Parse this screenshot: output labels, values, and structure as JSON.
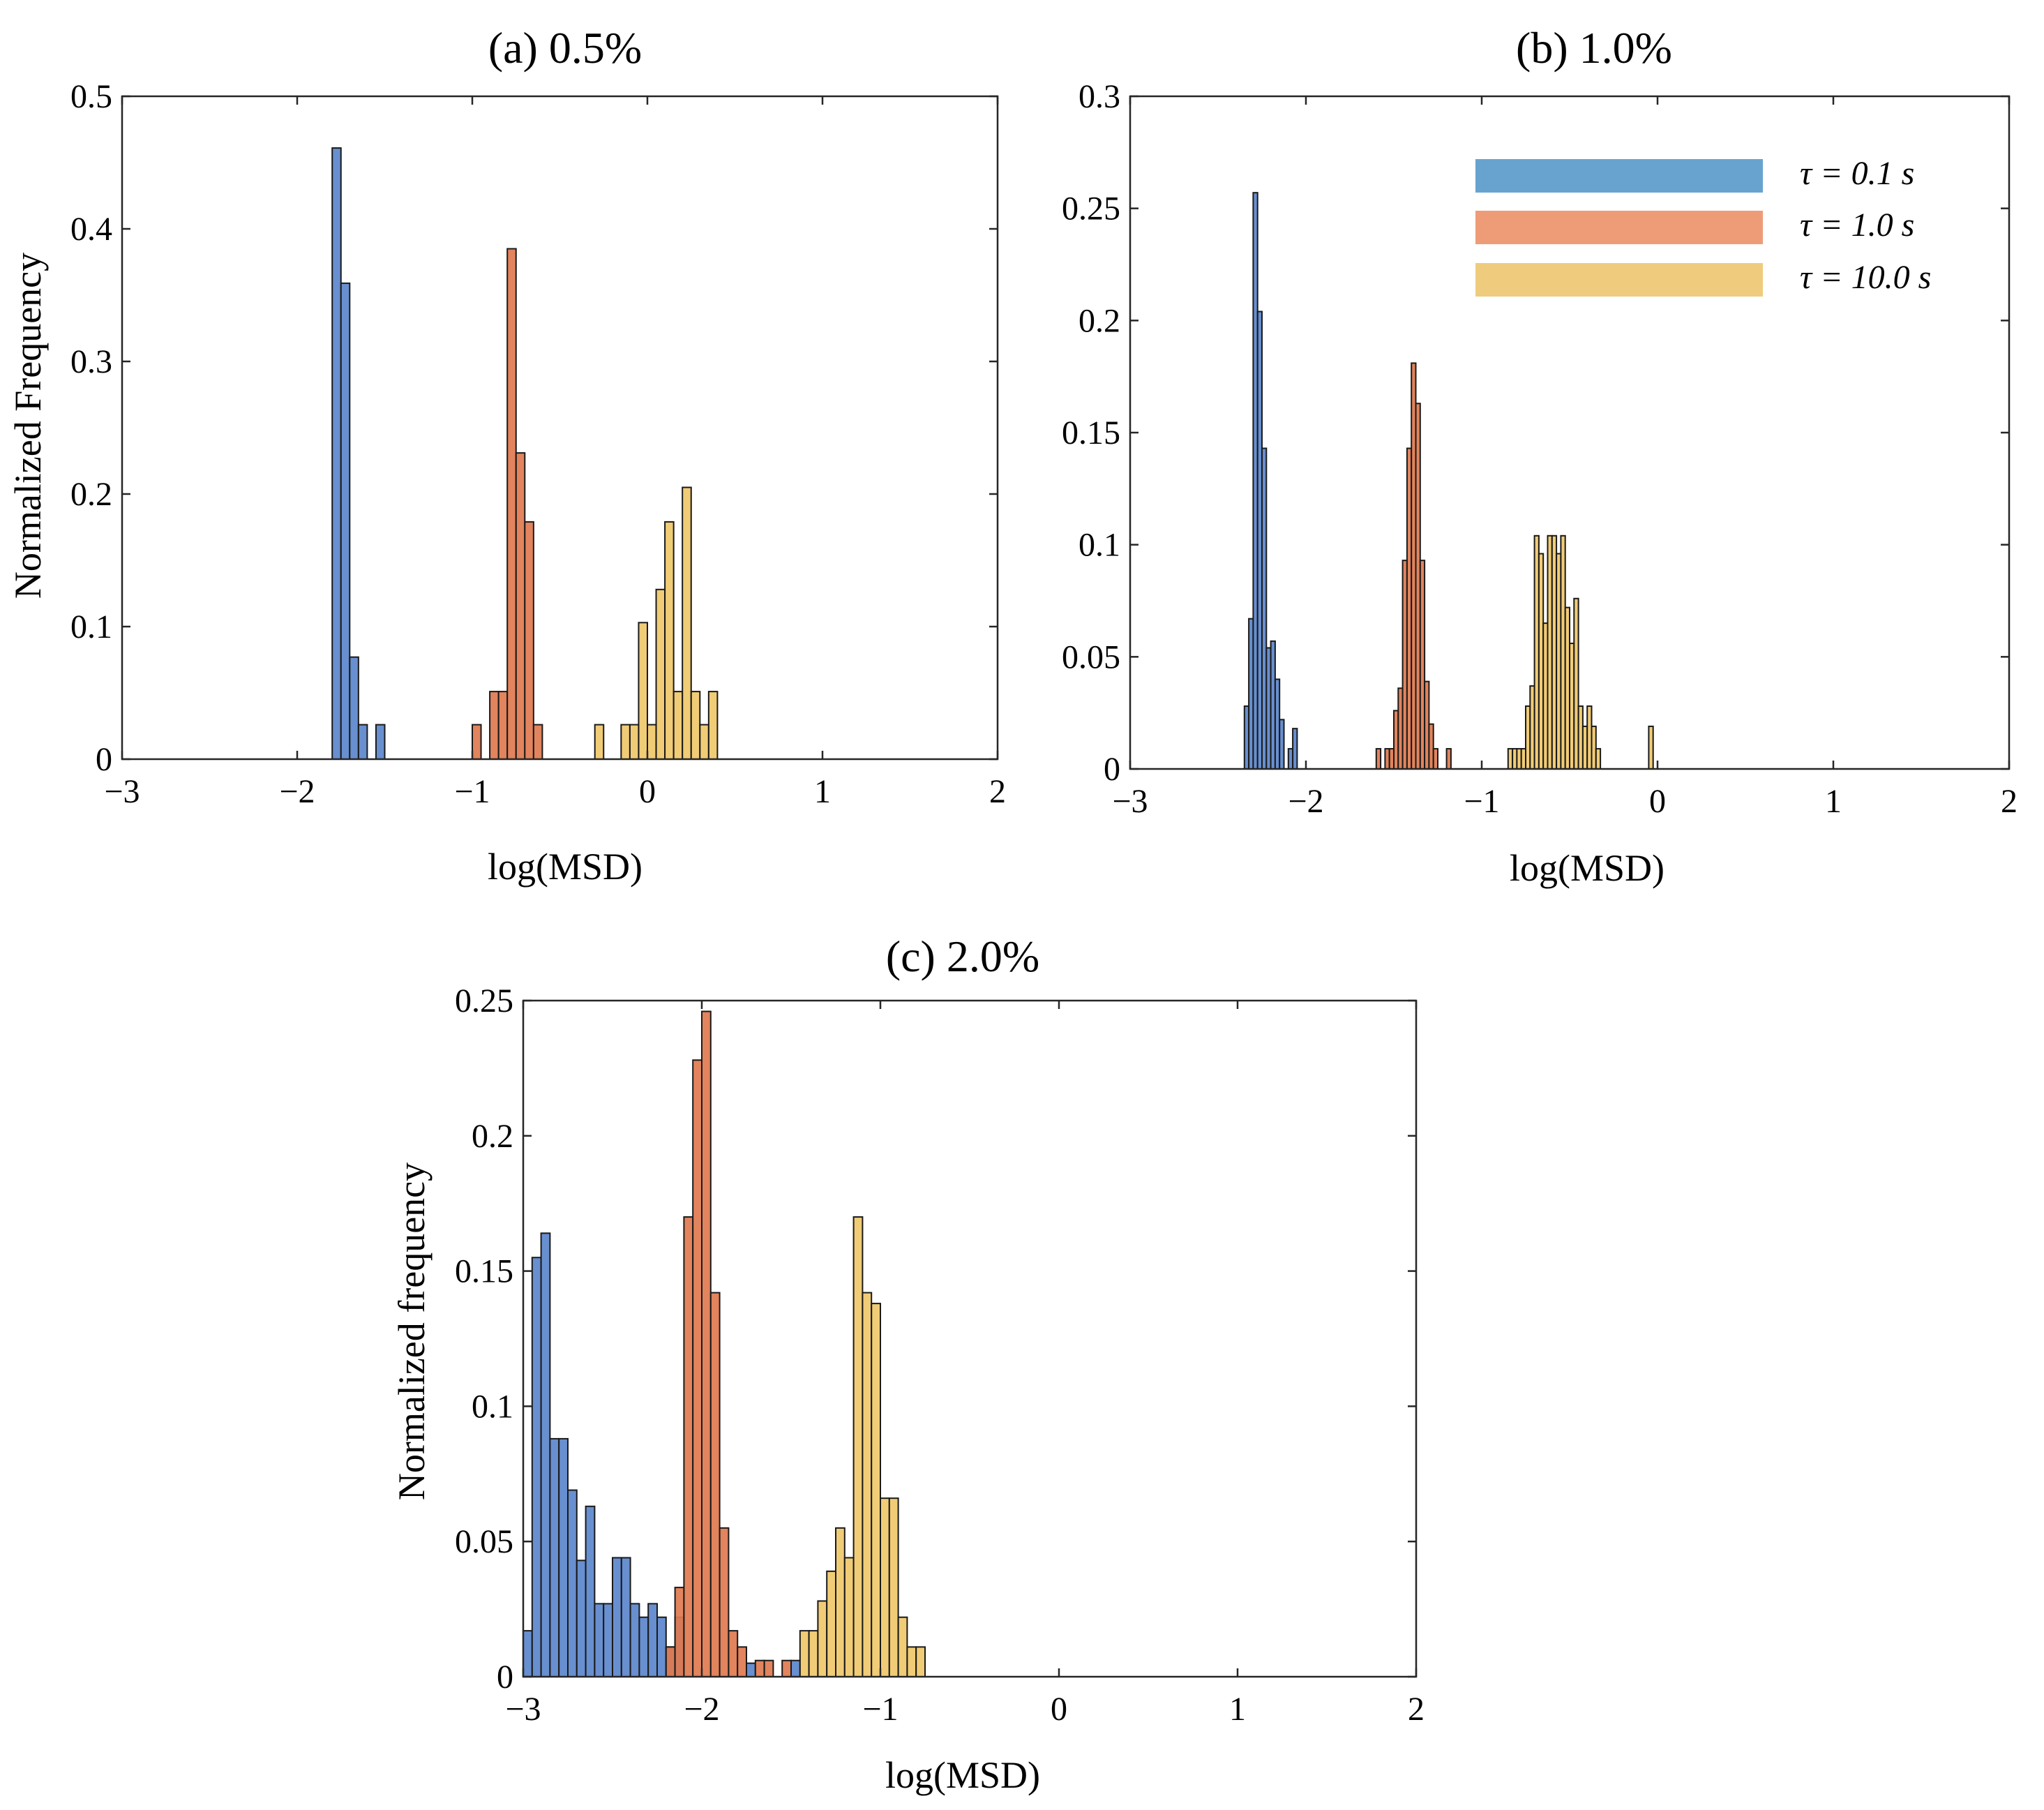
{
  "colors": {
    "tau_0_1": "#5B85CB",
    "tau_1_0": "#E07A4F",
    "tau_10_0": "#F0C86A",
    "legend_tau_0_1": "#68A3CF",
    "legend_tau_1_0": "#EE9C78",
    "legend_tau_10_0": "#EFCC7D"
  },
  "legend": {
    "items": [
      {
        "label": "τ = 0.1 s",
        "color_key": "legend_tau_0_1"
      },
      {
        "label": "τ = 1.0 s",
        "color_key": "legend_tau_1_0"
      },
      {
        "label": "τ = 10.0 s",
        "color_key": "legend_tau_10_0"
      }
    ]
  },
  "chart_data": [
    {
      "type": "bar",
      "title": "(a)  0.5%",
      "xlabel": "log(MSD)",
      "ylabel": "Normalized Frequency",
      "xlim": [
        -3,
        2
      ],
      "ylim": [
        0,
        0.5
      ],
      "xticks": [
        -3,
        -2,
        -1,
        0,
        1,
        2
      ],
      "xtick_labels": [
        "−3",
        "−2",
        "−1",
        "0",
        "1",
        "2"
      ],
      "yticks": [
        0,
        0.1,
        0.2,
        0.3,
        0.4,
        0.5
      ],
      "ytick_labels": [
        "0",
        "0.1",
        "0.2",
        "0.3",
        "0.4",
        "0.5"
      ],
      "bin_width": 0.05,
      "legend": false,
      "series": [
        {
          "name": "τ = 0.1 s",
          "color_key": "tau_0_1",
          "bins": [
            {
              "x": -1.8,
              "y": 0.461
            },
            {
              "x": -1.75,
              "y": 0.359
            },
            {
              "x": -1.7,
              "y": 0.077
            },
            {
              "x": -1.65,
              "y": 0.026
            },
            {
              "x": -1.55,
              "y": 0.026
            }
          ]
        },
        {
          "name": "τ = 1.0 s",
          "color_key": "tau_1_0",
          "bins": [
            {
              "x": -1.0,
              "y": 0.026
            },
            {
              "x": -0.9,
              "y": 0.051
            },
            {
              "x": -0.85,
              "y": 0.051
            },
            {
              "x": -0.8,
              "y": 0.385
            },
            {
              "x": -0.75,
              "y": 0.231
            },
            {
              "x": -0.7,
              "y": 0.179
            },
            {
              "x": -0.65,
              "y": 0.026
            }
          ]
        },
        {
          "name": "τ = 10.0 s",
          "color_key": "tau_10_0",
          "bins": [
            {
              "x": -0.3,
              "y": 0.026
            },
            {
              "x": -0.15,
              "y": 0.026
            },
            {
              "x": -0.1,
              "y": 0.026
            },
            {
              "x": -0.05,
              "y": 0.103
            },
            {
              "x": 0.0,
              "y": 0.026
            },
            {
              "x": 0.05,
              "y": 0.128
            },
            {
              "x": 0.1,
              "y": 0.179
            },
            {
              "x": 0.15,
              "y": 0.051
            },
            {
              "x": 0.2,
              "y": 0.205
            },
            {
              "x": 0.25,
              "y": 0.051
            },
            {
              "x": 0.3,
              "y": 0.026
            },
            {
              "x": 0.35,
              "y": 0.051
            }
          ]
        }
      ]
    },
    {
      "type": "bar",
      "title": "(b)   1.0%",
      "xlabel": "log(MSD)",
      "ylabel": "",
      "xlim": [
        -3,
        2
      ],
      "ylim": [
        0,
        0.3
      ],
      "xticks": [
        -3,
        -2,
        -1,
        0,
        1,
        2
      ],
      "xtick_labels": [
        "−3",
        "−2",
        "−1",
        "0",
        "1",
        "2"
      ],
      "yticks": [
        0,
        0.05,
        0.1,
        0.15,
        0.2,
        0.25,
        0.3
      ],
      "ytick_labels": [
        "0",
        "0.05",
        "0.1",
        "0.15",
        "0.2",
        "0.25",
        "0.3"
      ],
      "bin_width": 0.025,
      "legend": true,
      "legend_position": "top-right",
      "series": [
        {
          "name": "τ = 0.1 s",
          "color_key": "tau_0_1",
          "bins": [
            {
              "x": -2.35,
              "y": 0.028
            },
            {
              "x": -2.325,
              "y": 0.067
            },
            {
              "x": -2.3,
              "y": 0.257
            },
            {
              "x": -2.275,
              "y": 0.204
            },
            {
              "x": -2.25,
              "y": 0.143
            },
            {
              "x": -2.225,
              "y": 0.054
            },
            {
              "x": -2.2,
              "y": 0.057
            },
            {
              "x": -2.175,
              "y": 0.04
            },
            {
              "x": -2.15,
              "y": 0.022
            },
            {
              "x": -2.1,
              "y": 0.009
            },
            {
              "x": -2.075,
              "y": 0.018
            }
          ]
        },
        {
          "name": "τ = 1.0 s",
          "color_key": "tau_1_0",
          "bins": [
            {
              "x": -1.6,
              "y": 0.009
            },
            {
              "x": -1.55,
              "y": 0.009
            },
            {
              "x": -1.525,
              "y": 0.009
            },
            {
              "x": -1.5,
              "y": 0.026
            },
            {
              "x": -1.475,
              "y": 0.036
            },
            {
              "x": -1.45,
              "y": 0.093
            },
            {
              "x": -1.425,
              "y": 0.143
            },
            {
              "x": -1.4,
              "y": 0.181
            },
            {
              "x": -1.375,
              "y": 0.163
            },
            {
              "x": -1.35,
              "y": 0.093
            },
            {
              "x": -1.325,
              "y": 0.039
            },
            {
              "x": -1.3,
              "y": 0.02
            },
            {
              "x": -1.275,
              "y": 0.009
            },
            {
              "x": -1.2,
              "y": 0.009
            }
          ]
        },
        {
          "name": "τ = 10.0 s",
          "color_key": "tau_10_0",
          "bins": [
            {
              "x": -0.85,
              "y": 0.009
            },
            {
              "x": -0.825,
              "y": 0.009
            },
            {
              "x": -0.8,
              "y": 0.009
            },
            {
              "x": -0.775,
              "y": 0.009
            },
            {
              "x": -0.75,
              "y": 0.028
            },
            {
              "x": -0.725,
              "y": 0.037
            },
            {
              "x": -0.7,
              "y": 0.104
            },
            {
              "x": -0.675,
              "y": 0.096
            },
            {
              "x": -0.65,
              "y": 0.065
            },
            {
              "x": -0.625,
              "y": 0.104
            },
            {
              "x": -0.6,
              "y": 0.104
            },
            {
              "x": -0.575,
              "y": 0.096
            },
            {
              "x": -0.55,
              "y": 0.104
            },
            {
              "x": -0.525,
              "y": 0.072
            },
            {
              "x": -0.5,
              "y": 0.056
            },
            {
              "x": -0.475,
              "y": 0.076
            },
            {
              "x": -0.45,
              "y": 0.028
            },
            {
              "x": -0.425,
              "y": 0.019
            },
            {
              "x": -0.4,
              "y": 0.028
            },
            {
              "x": -0.375,
              "y": 0.019
            },
            {
              "x": -0.35,
              "y": 0.009
            },
            {
              "x": -0.05,
              "y": 0.019
            }
          ]
        }
      ]
    },
    {
      "type": "bar",
      "title": "(c)   2.0%",
      "xlabel": "log(MSD)",
      "ylabel": "Normalized frequency",
      "xlim": [
        -3,
        2
      ],
      "ylim": [
        0,
        0.25
      ],
      "xticks": [
        -3,
        -2,
        -1,
        0,
        1,
        2
      ],
      "xtick_labels": [
        "−3",
        "−2",
        "−1",
        "0",
        "1",
        "2"
      ],
      "yticks": [
        0,
        0.05,
        0.1,
        0.15,
        0.2,
        0.25
      ],
      "ytick_labels": [
        "0",
        "0.05",
        "0.1",
        "0.15",
        "0.2",
        "0.25"
      ],
      "bin_width": 0.05,
      "legend": false,
      "series": [
        {
          "name": "τ = 0.1 s",
          "color_key": "tau_0_1",
          "bins": [
            {
              "x": -3.0,
              "y": 0.017
            },
            {
              "x": -2.95,
              "y": 0.155
            },
            {
              "x": -2.9,
              "y": 0.164
            },
            {
              "x": -2.85,
              "y": 0.088
            },
            {
              "x": -2.8,
              "y": 0.088
            },
            {
              "x": -2.75,
              "y": 0.069
            },
            {
              "x": -2.7,
              "y": 0.043
            },
            {
              "x": -2.65,
              "y": 0.063
            },
            {
              "x": -2.6,
              "y": 0.027
            },
            {
              "x": -2.55,
              "y": 0.027
            },
            {
              "x": -2.5,
              "y": 0.044
            },
            {
              "x": -2.45,
              "y": 0.044
            },
            {
              "x": -2.4,
              "y": 0.027
            },
            {
              "x": -2.35,
              "y": 0.022
            },
            {
              "x": -2.3,
              "y": 0.027
            },
            {
              "x": -2.25,
              "y": 0.022
            },
            {
              "x": -2.2,
              "y": 0.011
            },
            {
              "x": -2.15,
              "y": 0.022
            },
            {
              "x": -1.75,
              "y": 0.005
            },
            {
              "x": -1.5,
              "y": 0.006
            }
          ]
        },
        {
          "name": "τ = 1.0 s",
          "color_key": "tau_1_0",
          "bins": [
            {
              "x": -2.2,
              "y": 0.011
            },
            {
              "x": -2.15,
              "y": 0.033
            },
            {
              "x": -2.1,
              "y": 0.17
            },
            {
              "x": -2.05,
              "y": 0.228
            },
            {
              "x": -2.0,
              "y": 0.246
            },
            {
              "x": -1.95,
              "y": 0.142
            },
            {
              "x": -1.9,
              "y": 0.055
            },
            {
              "x": -1.85,
              "y": 0.017
            },
            {
              "x": -1.8,
              "y": 0.011
            },
            {
              "x": -1.7,
              "y": 0.006
            },
            {
              "x": -1.65,
              "y": 0.006
            },
            {
              "x": -1.55,
              "y": 0.006
            }
          ]
        },
        {
          "name": "τ = 10.0 s",
          "color_key": "tau_10_0",
          "bins": [
            {
              "x": -1.45,
              "y": 0.017
            },
            {
              "x": -1.4,
              "y": 0.017
            },
            {
              "x": -1.35,
              "y": 0.028
            },
            {
              "x": -1.3,
              "y": 0.039
            },
            {
              "x": -1.25,
              "y": 0.055
            },
            {
              "x": -1.2,
              "y": 0.044
            },
            {
              "x": -1.15,
              "y": 0.17
            },
            {
              "x": -1.1,
              "y": 0.142
            },
            {
              "x": -1.05,
              "y": 0.138
            },
            {
              "x": -1.0,
              "y": 0.066
            },
            {
              "x": -0.95,
              "y": 0.066
            },
            {
              "x": -0.9,
              "y": 0.022
            },
            {
              "x": -0.85,
              "y": 0.011
            },
            {
              "x": -0.8,
              "y": 0.011
            }
          ]
        }
      ]
    }
  ]
}
